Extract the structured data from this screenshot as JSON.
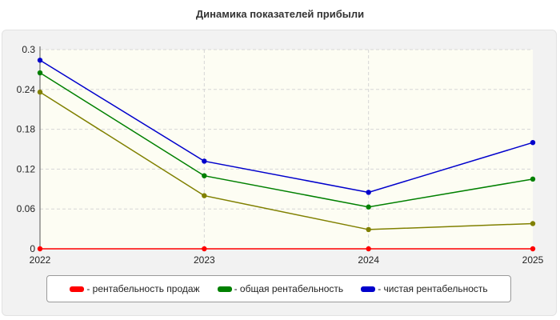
{
  "chart_data": {
    "type": "line",
    "title": "Динамика показателей прибыли",
    "xlabel": "",
    "ylabel": "",
    "x": [
      "2022",
      "2023",
      "2024",
      "2025"
    ],
    "ylim": [
      0,
      0.3
    ],
    "yticks": [
      "0",
      "0.06",
      "0.12",
      "0.18",
      "0.24",
      "0.3"
    ],
    "ytick_values": [
      0,
      0.06,
      0.12,
      0.18,
      0.24,
      0.3
    ],
    "grid": true,
    "legend_position": "bottom",
    "series": [
      {
        "name": "рентабельность продаж",
        "label": "- рентабельность продаж",
        "color": "#ff0000",
        "values": [
          0,
          0,
          0,
          0
        ],
        "show_in_legend": true
      },
      {
        "name": "",
        "label": "",
        "color": "#808000",
        "values": [
          0.236,
          0.08,
          0.029,
          0.038
        ],
        "show_in_legend": false
      },
      {
        "name": "общая рентабельность",
        "label": "- общая рентабельность",
        "color": "#008000",
        "values": [
          0.265,
          0.11,
          0.063,
          0.105
        ],
        "show_in_legend": true
      },
      {
        "name": "чистая рентабельность",
        "label": "- чистая рентабельность",
        "color": "#0000cc",
        "values": [
          0.284,
          0.132,
          0.085,
          0.16
        ],
        "show_in_legend": true
      }
    ]
  }
}
